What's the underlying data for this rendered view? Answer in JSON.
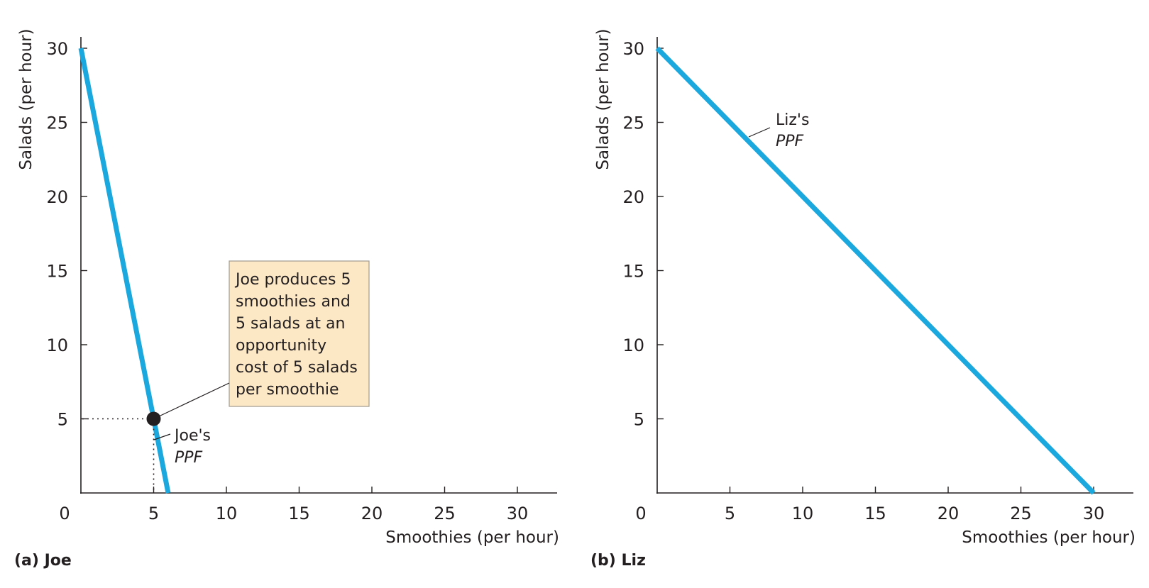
{
  "chart_data": [
    {
      "type": "line",
      "panel": "(a) Joe",
      "xlabel": "Smoothies (per hour)",
      "ylabel": "Salads (per hour)",
      "xlim": [
        0,
        32.5
      ],
      "ylim": [
        0,
        32
      ],
      "xticks": [
        0,
        5,
        10,
        15,
        20,
        25,
        30
      ],
      "yticks": [
        5,
        10,
        15,
        20,
        25,
        30
      ],
      "grid": false,
      "series": [
        {
          "x": [
            0,
            6
          ],
          "y": [
            30,
            0
          ],
          "color": "#1ba8de"
        }
      ],
      "ppf_label": {
        "line1": "Joe's",
        "line2": "PPF"
      },
      "point": {
        "x": 5,
        "y": 5
      },
      "annotation": {
        "lines": [
          "Joe produces 5",
          "smoothies and",
          "5 salads at an",
          "opportunity",
          "cost of 5 salads",
          "per smoothie"
        ],
        "fill": "#fde8c6",
        "border": "#a09a90"
      }
    },
    {
      "type": "line",
      "panel": "(b) Liz",
      "xlabel": "Smoothies (per hour)",
      "ylabel": "Salads (per hour)",
      "xlim": [
        0,
        32.5
      ],
      "ylim": [
        0,
        32
      ],
      "xticks": [
        0,
        5,
        10,
        15,
        20,
        25,
        30
      ],
      "yticks": [
        5,
        10,
        15,
        20,
        25,
        30
      ],
      "grid": false,
      "series": [
        {
          "x": [
            0,
            30
          ],
          "y": [
            30,
            0
          ],
          "color": "#1ba8de"
        }
      ],
      "ppf_label": {
        "line1": "Liz's",
        "line2": "PPF"
      }
    }
  ]
}
